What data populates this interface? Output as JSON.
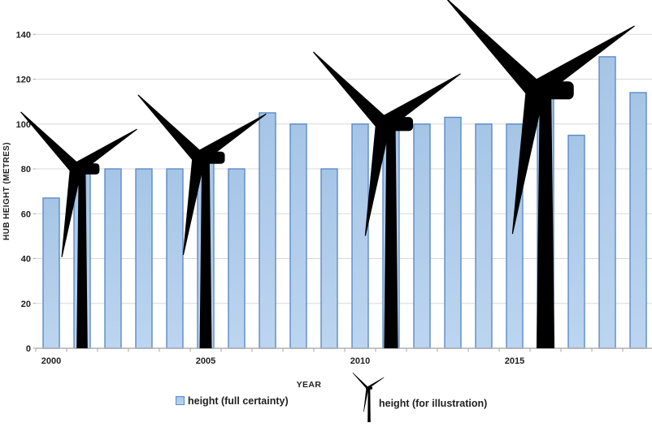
{
  "axes": {
    "y_title": "HUB HEIGHT (METRES)",
    "x_title": "YEAR"
  },
  "legend": {
    "bar_label": "height (full certainty)",
    "turbine_label": "height (for illustration)"
  },
  "colors": {
    "bar_fill_top": "#a6c5e6",
    "bar_fill_bottom": "#bcd5f0",
    "bar_border": "#5c8bc8",
    "gridline": "#d9d9d9",
    "axis_line": "#b0b0b0",
    "tick": "#a6a6a6",
    "turbine": "#000000",
    "text": "#1f1f1f"
  },
  "chart_data": {
    "type": "bar",
    "title": "",
    "xlabel": "YEAR",
    "ylabel": "HUB HEIGHT (METRES)",
    "categories": [
      "2000",
      "2001",
      "2002",
      "2003",
      "2004",
      "2005",
      "2006",
      "2007",
      "2008",
      "2009",
      "2010",
      "2011",
      "2012",
      "2013",
      "2014",
      "2015",
      "2016",
      "2017",
      "2018",
      "2019"
    ],
    "series": [
      {
        "name": "height (full certainty)",
        "values": [
          67,
          80,
          80,
          80,
          80,
          85,
          80,
          105,
          100,
          80,
          100,
          100,
          100,
          103,
          100,
          100,
          115,
          95,
          130,
          114
        ]
      }
    ],
    "ylim": [
      0,
      140
    ],
    "ytick_step": 20,
    "xticks_labeled": [
      "2000",
      "2005",
      "2010",
      "2015"
    ],
    "grid": true,
    "legend_position": "bottom",
    "turbine_markers": [
      {
        "year": "2001",
        "hub_height": 80
      },
      {
        "year": "2005",
        "hub_height": 85
      },
      {
        "year": "2011",
        "hub_height": 100
      },
      {
        "year": "2016",
        "hub_height": 115
      }
    ]
  }
}
